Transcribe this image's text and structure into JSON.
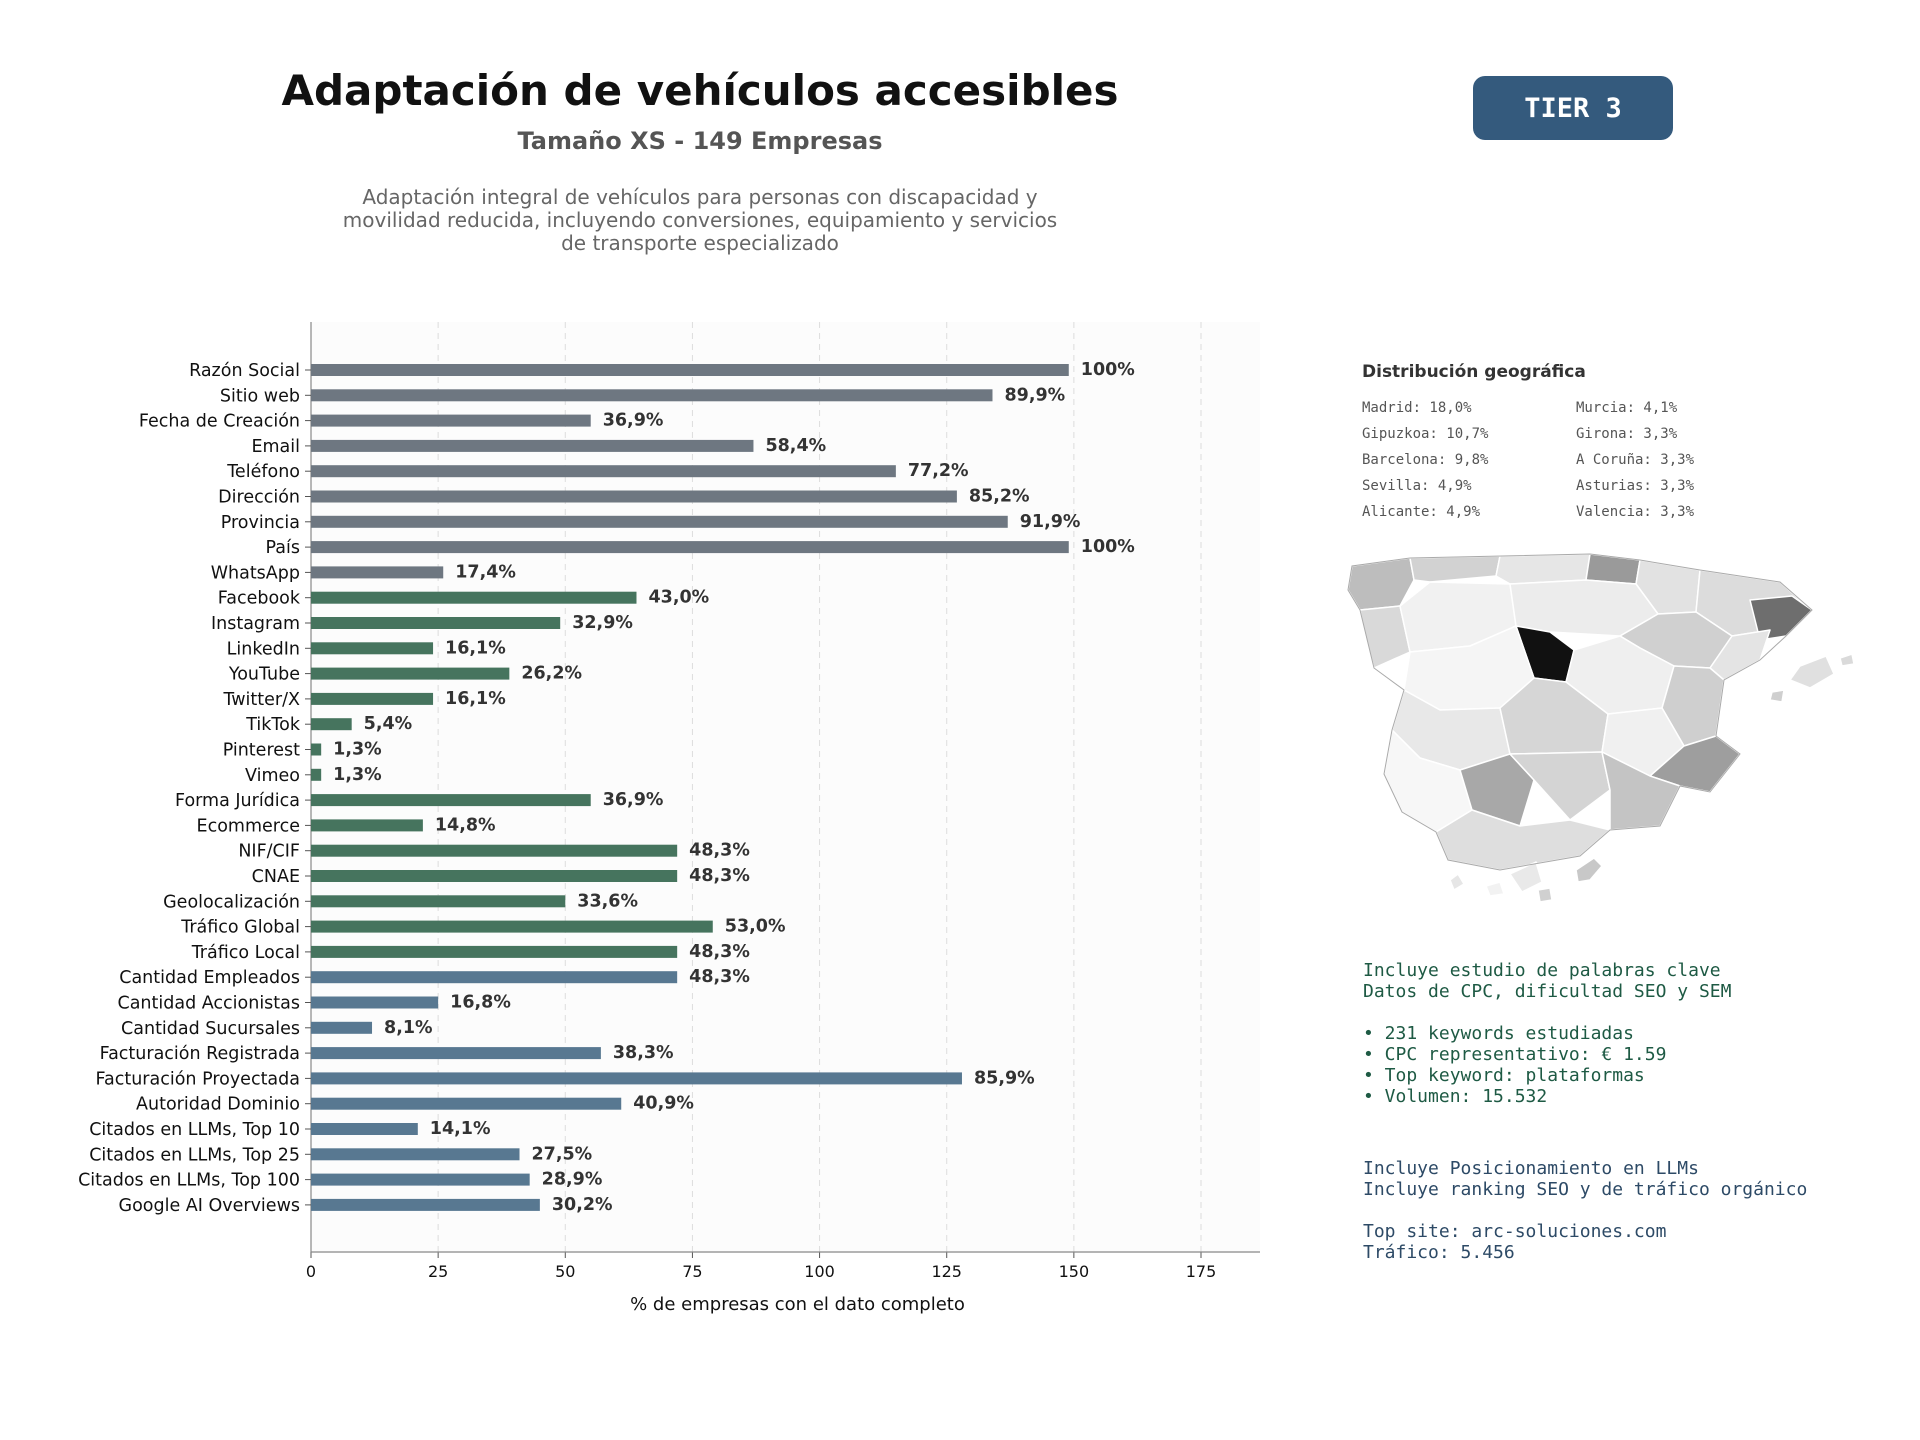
{
  "header": {
    "title": "Adaptación de vehículos accesibles",
    "subtitle": "Tamaño XS - 149 Empresas",
    "description_lines": [
      "Adaptación integral de vehículos para personas con discapacidad y",
      "movilidad reducida, incluyendo conversiones, equipamiento y servicios",
      "de transporte especializado"
    ],
    "tier": "TIER 3"
  },
  "chart_data": {
    "type": "bar",
    "orientation": "horizontal",
    "xlabel": "% de empresas con el dato completo",
    "ylabel": "",
    "xlim": [
      0,
      187
    ],
    "xticks": [
      0,
      25,
      50,
      75,
      100,
      125,
      150,
      175
    ],
    "grid": "vertical dashed",
    "categories": [
      "Razón Social",
      "Sitio web",
      "Fecha de Creación",
      "Email",
      "Teléfono",
      "Dirección",
      "Provincia",
      "País",
      "WhatsApp",
      "Facebook",
      "Instagram",
      "LinkedIn",
      "YouTube",
      "Twitter/X",
      "TikTok",
      "Pinterest",
      "Vimeo",
      "Forma Jurídica",
      "Ecommerce",
      "NIF/CIF",
      "CNAE",
      "Geolocalización",
      "Tráfico Global",
      "Tráfico Local",
      "Cantidad Empleados",
      "Cantidad Accionistas",
      "Cantidad Sucursales",
      "Facturación Registrada",
      "Facturación Proyectada",
      "Autoridad Dominio",
      "Citados en LLMs, Top 10",
      "Citados en LLMs, Top 25",
      "Citados en LLMs, Top 100",
      "Google AI Overviews"
    ],
    "values": [
      149,
      134,
      55,
      87,
      115,
      127,
      137,
      149,
      26,
      64,
      49,
      24,
      39,
      24,
      8,
      2,
      2,
      55,
      22,
      72,
      72,
      50,
      79,
      72,
      72,
      25,
      12,
      57,
      128,
      61,
      21,
      41,
      43,
      45
    ],
    "labels": [
      "100%",
      "89,9%",
      "36,9%",
      "58,4%",
      "77,2%",
      "85,2%",
      "91,9%",
      "100%",
      "17,4%",
      "43,0%",
      "32,9%",
      "16,1%",
      "26,2%",
      "16,1%",
      "5,4%",
      "1,3%",
      "1,3%",
      "36,9%",
      "14,8%",
      "48,3%",
      "48,3%",
      "33,6%",
      "53,0%",
      "48,3%",
      "48,3%",
      "16,8%",
      "8,1%",
      "38,3%",
      "85,9%",
      "40,9%",
      "14,1%",
      "27,5%",
      "28,9%",
      "30,2%"
    ],
    "groups": [
      0,
      0,
      0,
      0,
      0,
      0,
      0,
      0,
      0,
      1,
      1,
      1,
      1,
      1,
      1,
      1,
      1,
      1,
      1,
      1,
      1,
      1,
      1,
      1,
      2,
      2,
      2,
      2,
      2,
      2,
      2,
      2,
      2,
      2
    ],
    "group_colors": [
      "#6e7781",
      "#46745e",
      "#587891"
    ]
  },
  "geo": {
    "title": "Distribución geográfica",
    "items": [
      "Madrid: 18,0%",
      "Murcia: 4,1%",
      "Gipuzkoa: 10,7%",
      "Girona: 3,3%",
      "Barcelona: 9,8%",
      "A Coruña: 3,3%",
      "Sevilla: 4,9%",
      "Asturias: 3,3%",
      "Alicante: 4,9%",
      "Valencia: 3,3%"
    ]
  },
  "keywords": {
    "line1": "Incluye estudio de palabras clave",
    "line2": "Datos de CPC, dificultad SEO y SEM",
    "bullets": [
      "• 231 keywords estudiadas",
      "• CPC representativo: € 1.59",
      "• Top keyword: plataformas",
      "• Volumen: 15.532"
    ]
  },
  "llm": {
    "line1": "Incluye Posicionamiento en LLMs",
    "line2": "Incluye ranking SEO y de tráfico orgánico",
    "top_site": "Top site: arc-soluciones.com",
    "traffic": "Tráfico: 5.456"
  }
}
